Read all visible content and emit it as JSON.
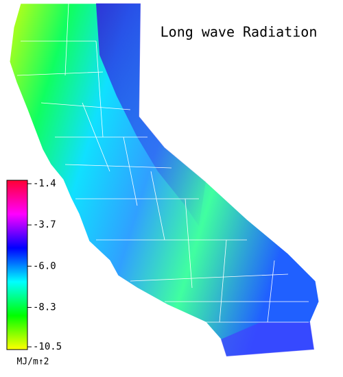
{
  "title": "Long wave Radiation",
  "colorbar": {
    "lim": [
      -10.5,
      -1.4
    ],
    "ticks": [
      -1.4,
      -3.7,
      {
        "value": -6.0,
        "label": "-6.0"
      },
      -8.3,
      -10.5
    ],
    "colors": [
      "#ffff00",
      "#00ff00",
      "#00ffff",
      "#0000ff",
      "#ff00ff",
      "#ff0033"
    ],
    "unit_label": "MJ/m↑2"
  }
}
